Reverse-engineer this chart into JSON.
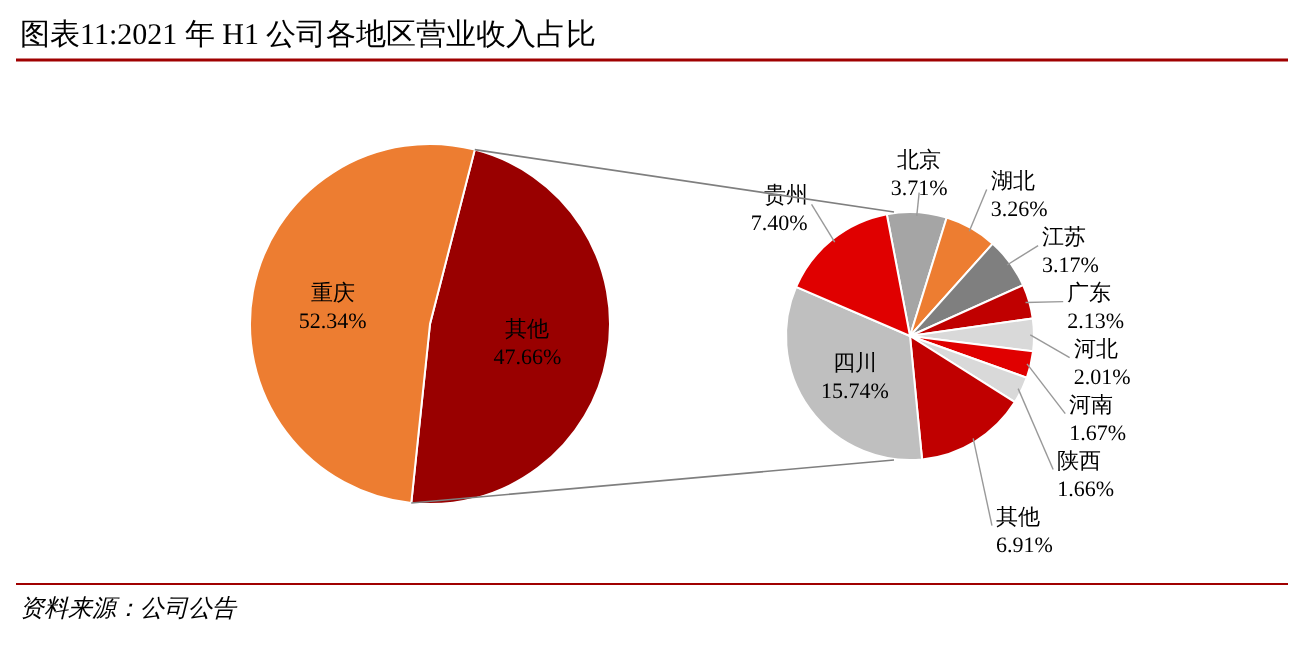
{
  "chart_data": [
    {
      "type": "pie",
      "title": "图表11:2021 年 H1 公司各地区营业收入占比",
      "categories": [
        "其他",
        "重庆"
      ],
      "values": [
        47.66,
        52.34
      ],
      "value_labels": [
        "47.66%",
        "52.34%"
      ],
      "colors": [
        "#990000",
        "#ed7d31"
      ],
      "annotations": [
        "资料来源：公司公告"
      ]
    },
    {
      "type": "pie",
      "categories": [
        "北京",
        "湖北",
        "江苏",
        "广东",
        "河北",
        "河南",
        "陕西",
        "其他",
        "四川",
        "贵州"
      ],
      "values": [
        3.71,
        3.26,
        3.17,
        2.13,
        2.01,
        1.67,
        1.66,
        6.91,
        15.74,
        7.4
      ],
      "value_labels": [
        "3.71%",
        "3.26%",
        "3.17%",
        "2.13%",
        "2.01%",
        "1.67%",
        "1.66%",
        "6.91%",
        "15.74%",
        "7.40%"
      ],
      "colors": [
        "#a5a5a5",
        "#ed7d31",
        "#7f7f7f",
        "#c00000",
        "#d9d9d9",
        "#e00000",
        "#d9d9d9",
        "#c00000",
        "#bfbfbf",
        "#e00000"
      ]
    }
  ]
}
